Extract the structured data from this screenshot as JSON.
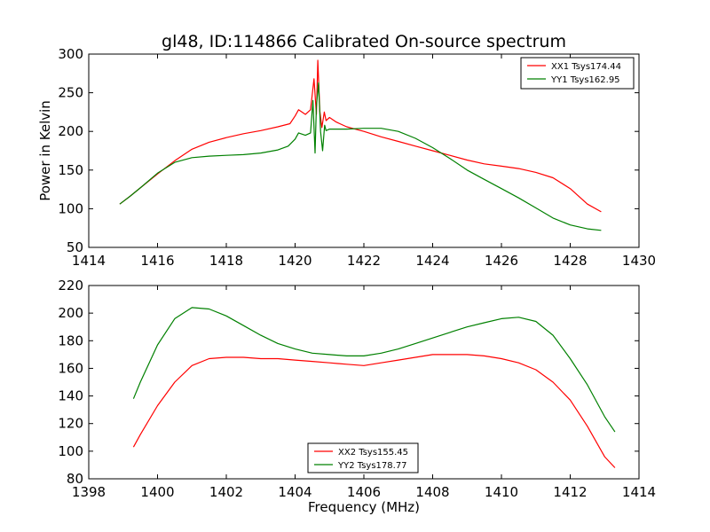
{
  "title": "gl48, ID:114866 Calibrated On-source spectrum",
  "colors": {
    "red": "#ff0000",
    "green": "#008000"
  },
  "chart_data": [
    {
      "type": "line",
      "title": "gl48, ID:114866 Calibrated On-source spectrum",
      "xlabel": "",
      "ylabel": "Power in Kelvin",
      "xlim": [
        1414,
        1430
      ],
      "ylim": [
        50,
        300
      ],
      "xticks": [
        1414,
        1416,
        1418,
        1420,
        1422,
        1424,
        1426,
        1428,
        1430
      ],
      "yticks": [
        50,
        100,
        150,
        200,
        250,
        300
      ],
      "legend_position": "top-right",
      "series": [
        {
          "name": "XX1 Tsys174.44",
          "color": "#ff0000",
          "x": [
            1414.9,
            1415.2,
            1415.5,
            1416.0,
            1416.5,
            1417.0,
            1417.5,
            1418.0,
            1418.5,
            1419.0,
            1419.5,
            1419.85,
            1420.0,
            1420.1,
            1420.3,
            1420.45,
            1420.55,
            1420.62,
            1420.66,
            1420.72,
            1420.78,
            1420.85,
            1420.9,
            1421.0,
            1421.2,
            1421.5,
            1422.0,
            1422.5,
            1423.0,
            1423.5,
            1424.0,
            1424.5,
            1425.0,
            1425.5,
            1426.0,
            1426.5,
            1427.0,
            1427.5,
            1428.0,
            1428.5,
            1428.9
          ],
          "y": [
            106,
            116,
            127,
            145,
            162,
            177,
            186,
            192,
            197,
            201,
            206,
            210,
            220,
            228,
            222,
            228,
            268,
            222,
            292,
            226,
            205,
            225,
            214,
            218,
            212,
            206,
            200,
            193,
            187,
            181,
            175,
            169,
            163,
            158,
            155,
            152,
            147,
            140,
            126,
            106,
            96
          ]
        },
        {
          "name": "YY1 Tsys162.95",
          "color": "#008000",
          "x": [
            1414.9,
            1415.2,
            1415.5,
            1416.0,
            1416.5,
            1417.0,
            1417.5,
            1418.0,
            1418.5,
            1419.0,
            1419.5,
            1419.8,
            1420.0,
            1420.1,
            1420.3,
            1420.45,
            1420.52,
            1420.58,
            1420.62,
            1420.68,
            1420.74,
            1420.8,
            1420.86,
            1420.9,
            1421.0,
            1421.5,
            1422.0,
            1422.5,
            1423.0,
            1423.5,
            1424.0,
            1424.5,
            1425.0,
            1425.5,
            1426.0,
            1426.5,
            1427.0,
            1427.5,
            1428.0,
            1428.5,
            1428.9
          ],
          "y": [
            106,
            116,
            127,
            146,
            160,
            166,
            168,
            169,
            170,
            172,
            176,
            181,
            190,
            198,
            195,
            198,
            240,
            172,
            232,
            263,
            200,
            175,
            208,
            201,
            203,
            203,
            204,
            204,
            200,
            191,
            179,
            165,
            150,
            138,
            126,
            114,
            101,
            88,
            79,
            74,
            72
          ]
        }
      ]
    },
    {
      "type": "line",
      "title": "",
      "xlabel": "Frequency (MHz)",
      "ylabel": "",
      "xlim": [
        1398,
        1414
      ],
      "ylim": [
        80,
        220
      ],
      "xticks": [
        1398,
        1400,
        1402,
        1404,
        1406,
        1408,
        1410,
        1412,
        1414
      ],
      "yticks": [
        80,
        100,
        120,
        140,
        160,
        180,
        200,
        220
      ],
      "legend_position": "lower-center",
      "series": [
        {
          "name": "XX2 Tsys155.45",
          "color": "#ff0000",
          "x": [
            1399.3,
            1399.5,
            1400.0,
            1400.5,
            1401.0,
            1401.5,
            1402.0,
            1402.5,
            1403.0,
            1403.5,
            1404.0,
            1404.5,
            1405.0,
            1405.5,
            1406.0,
            1406.5,
            1407.0,
            1407.5,
            1408.0,
            1408.5,
            1409.0,
            1409.5,
            1410.0,
            1410.5,
            1411.0,
            1411.5,
            1412.0,
            1412.5,
            1413.0,
            1413.3
          ],
          "y": [
            103,
            112,
            133,
            150,
            162,
            167,
            168,
            168,
            167,
            167,
            166,
            165,
            164,
            163,
            162,
            164,
            166,
            168,
            170,
            170,
            170,
            169,
            167,
            164,
            159,
            150,
            137,
            118,
            96,
            88
          ]
        },
        {
          "name": "YY2 Tsys178.77",
          "color": "#008000",
          "x": [
            1399.3,
            1399.5,
            1400.0,
            1400.5,
            1401.0,
            1401.5,
            1402.0,
            1402.5,
            1403.0,
            1403.5,
            1404.0,
            1404.5,
            1405.0,
            1405.5,
            1406.0,
            1406.5,
            1407.0,
            1407.5,
            1408.0,
            1408.5,
            1409.0,
            1409.5,
            1410.0,
            1410.5,
            1411.0,
            1411.5,
            1412.0,
            1412.5,
            1413.0,
            1413.3
          ],
          "y": [
            138,
            150,
            177,
            196,
            204,
            203,
            198,
            191,
            184,
            178,
            174,
            171,
            170,
            169,
            169,
            171,
            174,
            178,
            182,
            186,
            190,
            193,
            196,
            197,
            194,
            184,
            167,
            148,
            125,
            114
          ]
        }
      ]
    }
  ]
}
